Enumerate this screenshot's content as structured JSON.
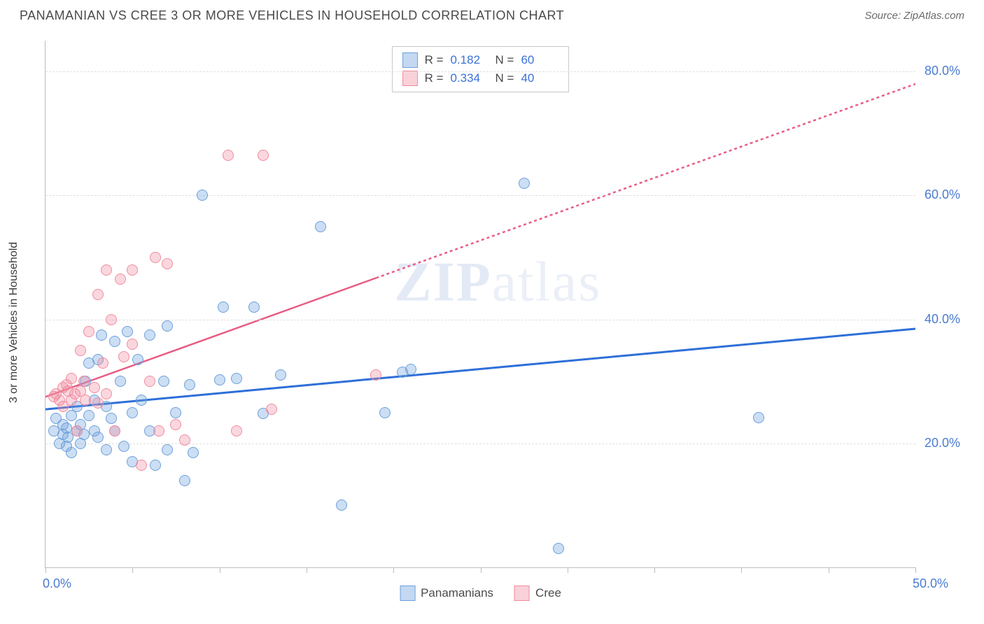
{
  "header": {
    "title": "PANAMANIAN VS CREE 3 OR MORE VEHICLES IN HOUSEHOLD CORRELATION CHART",
    "source": "Source: ZipAtlas.com"
  },
  "chart": {
    "type": "scatter",
    "ylabel": "3 or more Vehicles in Household",
    "xlim": [
      0,
      50
    ],
    "ylim": [
      0,
      85
    ],
    "xtick_positions": [
      0,
      5,
      10,
      15,
      20,
      25,
      30,
      35,
      40,
      45,
      50
    ],
    "xtick_labels_shown": {
      "0": "0.0%",
      "50": "50.0%"
    },
    "ytick_grid": [
      20,
      40,
      60,
      80
    ],
    "ytick_labels": [
      "20.0%",
      "40.0%",
      "60.0%",
      "80.0%"
    ],
    "background_color": "#ffffff",
    "grid_color": "#e0e0e0",
    "axis_color": "#bdbdbd",
    "label_color": "#4a7bd0",
    "watermark": "ZIPatlas",
    "series": [
      {
        "name": "Panamanians",
        "color_fill": "rgba(108,160,220,0.35)",
        "color_stroke": "#6ca0dc",
        "marker_radius": 8,
        "R": "0.182",
        "N": "60",
        "trend": {
          "color": "#2e6fd8",
          "width": 3,
          "x1": 0,
          "y1": 25.5,
          "x2": 50,
          "y2": 38.5,
          "solid_until_x": 50
        },
        "points": [
          [
            0.5,
            22
          ],
          [
            0.6,
            24
          ],
          [
            0.8,
            20
          ],
          [
            1,
            21.5
          ],
          [
            1,
            23
          ],
          [
            1.2,
            19.5
          ],
          [
            1.2,
            22.5
          ],
          [
            1.3,
            21
          ],
          [
            1.5,
            18.5
          ],
          [
            1.5,
            24.5
          ],
          [
            1.8,
            22
          ],
          [
            1.8,
            26
          ],
          [
            2,
            20
          ],
          [
            2,
            23
          ],
          [
            2.2,
            21.5
          ],
          [
            2.3,
            30
          ],
          [
            2.5,
            24.5
          ],
          [
            2.5,
            33
          ],
          [
            2.8,
            22
          ],
          [
            2.8,
            27
          ],
          [
            3,
            21
          ],
          [
            3,
            33.5
          ],
          [
            3.2,
            37.5
          ],
          [
            3.5,
            19
          ],
          [
            3.5,
            26
          ],
          [
            3.8,
            24
          ],
          [
            4,
            22
          ],
          [
            4,
            36.5
          ],
          [
            4.3,
            30
          ],
          [
            4.5,
            19.5
          ],
          [
            4.7,
            38
          ],
          [
            5,
            17
          ],
          [
            5,
            25
          ],
          [
            5.3,
            33.5
          ],
          [
            5.5,
            27
          ],
          [
            6,
            22
          ],
          [
            6,
            37.5
          ],
          [
            6.3,
            16.5
          ],
          [
            6.8,
            30
          ],
          [
            7,
            19
          ],
          [
            7,
            39
          ],
          [
            7.5,
            25
          ],
          [
            8,
            14
          ],
          [
            8.3,
            29.5
          ],
          [
            8.5,
            18.5
          ],
          [
            9,
            60
          ],
          [
            10,
            30.2
          ],
          [
            10.2,
            42
          ],
          [
            11,
            30.5
          ],
          [
            12,
            42
          ],
          [
            12.5,
            24.8
          ],
          [
            13.5,
            31
          ],
          [
            15.8,
            55
          ],
          [
            17,
            10
          ],
          [
            19.5,
            25
          ],
          [
            20.5,
            31.5
          ],
          [
            21,
            32
          ],
          [
            27.5,
            62
          ],
          [
            29.5,
            3
          ],
          [
            41,
            24.2
          ]
        ]
      },
      {
        "name": "Cree",
        "color_fill": "rgba(240,140,160,0.35)",
        "color_stroke": "#f08ca0",
        "marker_radius": 8,
        "R": "0.334",
        "N": "40",
        "trend": {
          "color": "#e85d84",
          "width": 2.5,
          "x1": 0,
          "y1": 27.5,
          "x2": 50,
          "y2": 78,
          "solid_until_x": 19
        },
        "points": [
          [
            0.5,
            27.5
          ],
          [
            0.6,
            28
          ],
          [
            0.8,
            27
          ],
          [
            1,
            26
          ],
          [
            1,
            29
          ],
          [
            1.2,
            29.5
          ],
          [
            1.3,
            28.5
          ],
          [
            1.5,
            27
          ],
          [
            1.5,
            30.5
          ],
          [
            1.7,
            28
          ],
          [
            1.8,
            22
          ],
          [
            2,
            28.5
          ],
          [
            2,
            35
          ],
          [
            2.2,
            30
          ],
          [
            2.3,
            27
          ],
          [
            2.5,
            38
          ],
          [
            2.8,
            29
          ],
          [
            3,
            26.5
          ],
          [
            3,
            44
          ],
          [
            3.3,
            33
          ],
          [
            3.5,
            48
          ],
          [
            3.5,
            28
          ],
          [
            3.8,
            40
          ],
          [
            4,
            22
          ],
          [
            4.3,
            46.5
          ],
          [
            4.5,
            34
          ],
          [
            5,
            36
          ],
          [
            5,
            48
          ],
          [
            5.5,
            16.5
          ],
          [
            6,
            30
          ],
          [
            6.3,
            50
          ],
          [
            6.5,
            22
          ],
          [
            7,
            49
          ],
          [
            7.5,
            23
          ],
          [
            8,
            20.5
          ],
          [
            10.5,
            66.5
          ],
          [
            11,
            22
          ],
          [
            12.5,
            66.5
          ],
          [
            13,
            25.5
          ],
          [
            19,
            31
          ]
        ]
      }
    ],
    "legend_bottom": [
      "Panamanians",
      "Cree"
    ]
  }
}
